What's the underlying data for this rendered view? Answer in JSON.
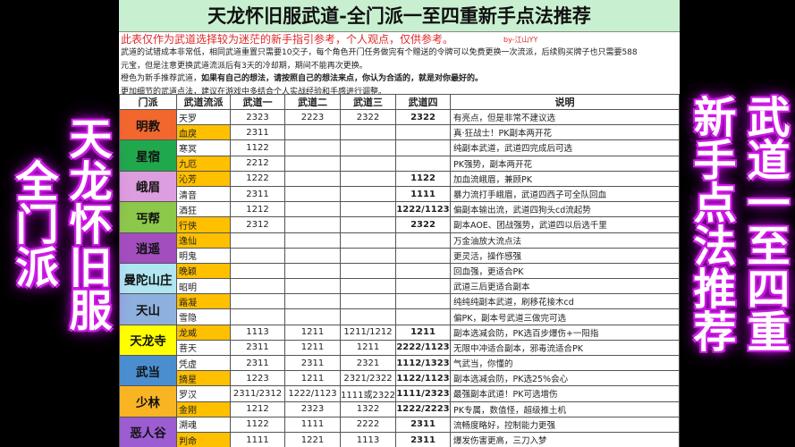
{
  "title": "天龙怀旧服武道-全门派一至四重新手点法推荐",
  "notice": "此表仅作为武道选择较为迷茫的新手指引参考，个人观点，仅供参考。",
  "author": "by-江山YY",
  "para1": "武道的试错成本非常低，相同武道重置只需要10交子，每个角色开门任务做完有个赠送的令牌可以免费更换一次流派，后续购买牌子也只需要588",
  "para2": "元宝，但是注意更换武道流派后有3天的冷却期，期间不能再次更换。",
  "para3a": "橙色为新手推荐武道，",
  "para3b": "如果有自己的想法，请按照自己的想法来点，你认为合适的，就是对你最好的。",
  "para4": "更加细节的武道点法，建议在游戏中多结合个人实战经验和手感进行调整。",
  "headers": [
    "门派",
    "武道流派",
    "武道一",
    "武道二",
    "武道三",
    "武道四",
    "说明"
  ],
  "sects": [
    {
      "name": "明教",
      "color": "#f2672e",
      "rows": [
        {
          "style": "天罗",
          "rec": false,
          "w": [
            "2323",
            "2223",
            "2322",
            "2322"
          ],
          "desc": "有亮点，但是非常不建议选"
        },
        {
          "style": "血戾",
          "rec": true,
          "w": [
            "2311",
            "",
            "",
            ""
          ],
          "desc": "真·狂战士！PK副本两开花"
        }
      ]
    },
    {
      "name": "星宿",
      "color": "#20a84c",
      "rows": [
        {
          "style": "寒冥",
          "rec": false,
          "w": [
            "1122",
            "",
            "",
            ""
          ],
          "desc": "纯副本武道，武道四完成后可选"
        },
        {
          "style": "九厄",
          "rec": true,
          "w": [
            "2212",
            "",
            "",
            ""
          ],
          "desc": "PK强势，副本两开花"
        }
      ]
    },
    {
      "name": "峨眉",
      "color": "#dc9ede",
      "rows": [
        {
          "style": "沁芳",
          "rec": true,
          "w": [
            "1222",
            "",
            "",
            "1122"
          ],
          "desc": "加血流峨眉，兼顾PK"
        },
        {
          "style": "清音",
          "rec": false,
          "w": [
            "2311",
            "",
            "",
            "1111"
          ],
          "desc": "暴力流打手峨眉，武道四西子可全队回血"
        }
      ]
    },
    {
      "name": "丐帮",
      "color": "#8cc84a",
      "rows": [
        {
          "style": "酒狂",
          "rec": false,
          "w": [
            "1212",
            "",
            "",
            "1222/1123"
          ],
          "desc": "偏副本输出流，武道四狗头cd流起势"
        },
        {
          "style": "行侠",
          "rec": true,
          "w": [
            "2312",
            "",
            "",
            "2322"
          ],
          "desc": "副本AOE、团战强势，武道四以后选千里"
        }
      ]
    },
    {
      "name": "逍遥",
      "color": "#a24ebe",
      "rows": [
        {
          "style": "逸仙",
          "rec": true,
          "w": [
            "",
            "",
            "",
            ""
          ],
          "desc": "万金油放大流点法"
        },
        {
          "style": "明鬼",
          "rec": false,
          "w": [
            "",
            "",
            "",
            ""
          ],
          "desc": "更灵活，操作感强"
        }
      ]
    },
    {
      "name": "曼陀山庄",
      "color": "#b0e6f2",
      "rows": [
        {
          "style": "晚颖",
          "rec": true,
          "w": [
            "",
            "",
            "",
            ""
          ],
          "desc": "回血强，更适合PK"
        },
        {
          "style": "昭明",
          "rec": false,
          "w": [
            "",
            "",
            "",
            ""
          ],
          "desc": "武道三后更适合副本"
        }
      ]
    },
    {
      "name": "天山",
      "color": "#8eb0de",
      "rows": [
        {
          "style": "霜凝",
          "rec": true,
          "w": [
            "",
            "",
            "",
            ""
          ],
          "desc": "纯纯纯副本武道，刷移花接木cd"
        },
        {
          "style": "雪隐",
          "rec": false,
          "w": [
            "",
            "",
            "",
            ""
          ],
          "desc": "偏PK，副本号武道三做完可选"
        }
      ]
    },
    {
      "name": "天龙寺",
      "color": "#ffff00",
      "rows": [
        {
          "style": "龙威",
          "rec": true,
          "w": [
            "1113",
            "1211",
            "1211/1212",
            "1211"
          ],
          "desc": "副本选减会防，PK选百步爆伤+一阳指"
        },
        {
          "style": "菩天",
          "rec": false,
          "w": [
            "2311",
            "1211",
            "1211",
            "2222/1123"
          ],
          "desc": "无限中冲适合副本，邪毒流适合PK"
        }
      ]
    },
    {
      "name": "武当",
      "color": "#4a8ed0",
      "rows": [
        {
          "style": "凭虚",
          "rec": false,
          "w": [
            "2311",
            "2311",
            "2321",
            "1112/1323"
          ],
          "desc": "气武当，你懂的"
        },
        {
          "style": "摘星",
          "rec": true,
          "w": [
            "1223",
            "1211",
            "2321/2322",
            "1122/1123"
          ],
          "desc": "副本选减会防，PK选25%会心"
        }
      ]
    },
    {
      "name": "少林",
      "color": "#f8b422",
      "rows": [
        {
          "style": "罗汉",
          "rec": false,
          "w": [
            "2311/2312",
            "1222/1123",
            "1111或2322",
            "1111/2323"
          ],
          "desc": "最强副本武道！PK可选增伤"
        },
        {
          "style": "金刚",
          "rec": true,
          "w": [
            "1212",
            "2323",
            "1322",
            "1222/2223"
          ],
          "desc": "PK专属，数值怪，超级推土机"
        }
      ]
    },
    {
      "name": "恶人谷",
      "color": "#9c5cd2",
      "rows": [
        {
          "style": "溯魂",
          "rec": false,
          "w": [
            "1122",
            "1111",
            "2222",
            "2311"
          ],
          "desc": "流畅度略好，控制能力更强"
        },
        {
          "style": "判命",
          "rec": true,
          "w": [
            "1111",
            "1221",
            "1113",
            "2311"
          ],
          "desc": "爆发伤害更高，三刀入梦"
        }
      ]
    }
  ],
  "overlay": [
    "天龙怀旧服",
    "全门派",
    "武道一至四重",
    "新手点法推荐"
  ],
  "colors": {
    "recommended": "#ffc000",
    "title_bg": "#c8f0d0",
    "notice": "#e02828",
    "glow": "#d030e8"
  }
}
